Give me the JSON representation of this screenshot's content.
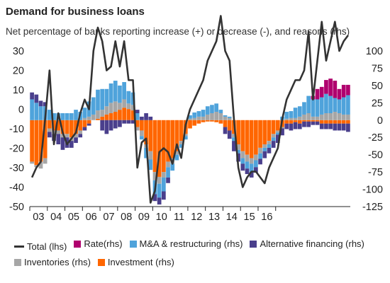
{
  "chart_data": {
    "type": "bar",
    "title": "Demand for business loans",
    "subtitle": "Net percentage of banks reporting increase (+) or decrease (-), and reasons (rhs)",
    "x_labels": [
      "03",
      "04",
      "05",
      "06",
      "07",
      "08",
      "09",
      "10",
      "11",
      "12",
      "13",
      "14",
      "15",
      "16"
    ],
    "quarters_start": "2003Q1",
    "ylim_left": [
      -50,
      30
    ],
    "yticks_left": [
      30,
      20,
      10,
      0,
      -10,
      -20,
      -30,
      -40,
      -50
    ],
    "ylim_right": [
      -125,
      100
    ],
    "yticks_right": [
      100,
      75,
      50,
      25,
      0,
      -25,
      -50,
      -75,
      -100,
      -125
    ],
    "series": [
      {
        "name": "Total (lhs)",
        "type": "line",
        "axis": "left",
        "color": "#333333",
        "values": [
          -35,
          -30,
          -27,
          -5,
          20,
          -18,
          -2,
          -12,
          -18,
          -15,
          -12,
          -2,
          5,
          0,
          30,
          42,
          35,
          20,
          22,
          35,
          22,
          35,
          15,
          15,
          -30,
          -17,
          -15,
          -48,
          -42,
          -22,
          -20,
          -22,
          -28,
          -18,
          -25,
          -8,
          0,
          5,
          10,
          15,
          25,
          30,
          35,
          48,
          30,
          25,
          -5,
          -30,
          -40,
          -35,
          -32,
          -32,
          -35,
          -38,
          -30,
          -25,
          -20,
          -5,
          5,
          10,
          15,
          15,
          20,
          40,
          5,
          25,
          45,
          25,
          35,
          45,
          30,
          35,
          38
        ]
      },
      {
        "name": "Investment (rhs)",
        "type": "bar",
        "axis": "right",
        "color": "#ff6600",
        "values": [
          -60,
          -65,
          -60,
          -55,
          -12,
          -15,
          -15,
          -20,
          -20,
          -25,
          -20,
          -15,
          -10,
          -5,
          0,
          2,
          5,
          8,
          10,
          12,
          15,
          18,
          16,
          14,
          -10,
          -15,
          -35,
          -45,
          -75,
          -82,
          -75,
          -60,
          -55,
          -45,
          -30,
          -20,
          -12,
          -8,
          -5,
          -3,
          -2,
          -2,
          -3,
          -5,
          -10,
          -15,
          -20,
          -35,
          -45,
          -50,
          -55,
          -50,
          -40,
          -35,
          -30,
          -20,
          -15,
          -10,
          -5,
          -5,
          -3,
          -5,
          -2,
          -2,
          -2,
          -2,
          -5,
          -5,
          -5,
          -5,
          -5,
          -5,
          -5
        ]
      },
      {
        "name": "Inventories (rhs)",
        "type": "bar",
        "axis": "right",
        "color": "#a6a6a6",
        "values": [
          -3,
          -3,
          -10,
          -8,
          -5,
          -5,
          -5,
          -5,
          -5,
          -5,
          -5,
          -5,
          3,
          5,
          8,
          12,
          10,
          12,
          15,
          15,
          10,
          12,
          8,
          8,
          -5,
          -8,
          -5,
          -12,
          -12,
          -10,
          -8,
          -8,
          -8,
          -5,
          -5,
          -3,
          2,
          3,
          5,
          5,
          8,
          10,
          12,
          10,
          5,
          3,
          -5,
          -8,
          -10,
          -10,
          -8,
          -8,
          -8,
          -5,
          -5,
          -5,
          -3,
          -2,
          2,
          3,
          3,
          5,
          8,
          10,
          5,
          5,
          8,
          10,
          10,
          12,
          10,
          8,
          8
        ]
      },
      {
        "name": "M&A & restructuring (rhs)",
        "type": "bar",
        "axis": "right",
        "color": "#4fa3db",
        "values": [
          30,
          25,
          20,
          20,
          15,
          10,
          10,
          10,
          10,
          10,
          15,
          12,
          15,
          22,
          25,
          30,
          30,
          25,
          28,
          30,
          25,
          25,
          18,
          18,
          10,
          -5,
          -15,
          -15,
          -20,
          -20,
          -20,
          -15,
          -10,
          -8,
          -5,
          -5,
          5,
          8,
          8,
          10,
          12,
          12,
          12,
          5,
          2,
          2,
          -5,
          -5,
          -8,
          -10,
          -12,
          -10,
          -8,
          -5,
          -5,
          -5,
          -3,
          5,
          10,
          10,
          15,
          15,
          18,
          25,
          25,
          25,
          25,
          28,
          25,
          20,
          20,
          25,
          28
        ]
      },
      {
        "name": "Alternative financing (rhs)",
        "type": "bar",
        "axis": "right",
        "color": "#4a3f8c",
        "values": [
          10,
          12,
          8,
          6,
          -8,
          -10,
          -15,
          -18,
          -15,
          -10,
          -8,
          -5,
          -5,
          -3,
          0,
          0,
          -15,
          -20,
          -15,
          -12,
          -10,
          -5,
          -5,
          -5,
          5,
          5,
          10,
          5,
          -10,
          -10,
          -12,
          -8,
          0,
          0,
          0,
          0,
          0,
          0,
          0,
          0,
          0,
          0,
          0,
          0,
          -10,
          -12,
          -15,
          -12,
          -10,
          -8,
          -8,
          -8,
          -8,
          -10,
          -8,
          -10,
          -12,
          -10,
          -8,
          -10,
          -10,
          -8,
          -8,
          -8,
          -5,
          -5,
          -8,
          -8,
          -8,
          -10,
          -10,
          -10,
          -12
        ]
      },
      {
        "name": "Rate(rhs)",
        "type": "bar",
        "axis": "right",
        "color": "#b0006e",
        "values": [
          0,
          0,
          0,
          0,
          0,
          0,
          0,
          0,
          0,
          0,
          0,
          0,
          0,
          0,
          0,
          0,
          0,
          0,
          0,
          0,
          0,
          0,
          0,
          0,
          0,
          0,
          0,
          0,
          0,
          0,
          0,
          0,
          0,
          0,
          0,
          0,
          0,
          0,
          0,
          0,
          0,
          0,
          0,
          0,
          0,
          0,
          0,
          0,
          0,
          0,
          0,
          0,
          0,
          0,
          0,
          0,
          0,
          0,
          0,
          0,
          0,
          0,
          0,
          0,
          5,
          15,
          15,
          20,
          25,
          25,
          15,
          18,
          15
        ]
      }
    ],
    "colors": {
      "axis": "#222222",
      "text": "#222222"
    },
    "legend": [
      {
        "label": "Total (lhs)",
        "color": "#333333",
        "kind": "line"
      },
      {
        "label": "Rate(rhs)",
        "color": "#b0006e",
        "kind": "box"
      },
      {
        "label": "M&A & restructuring (rhs)",
        "color": "#4fa3db",
        "kind": "box"
      },
      {
        "label": "Alternative financing (rhs)",
        "color": "#4a3f8c",
        "kind": "box"
      },
      {
        "label": "Inventories (rhs)",
        "color": "#a6a6a6",
        "kind": "box"
      },
      {
        "label": "Investment (rhs)",
        "color": "#ff6600",
        "kind": "box"
      }
    ],
    "legend_position": "bottom"
  }
}
